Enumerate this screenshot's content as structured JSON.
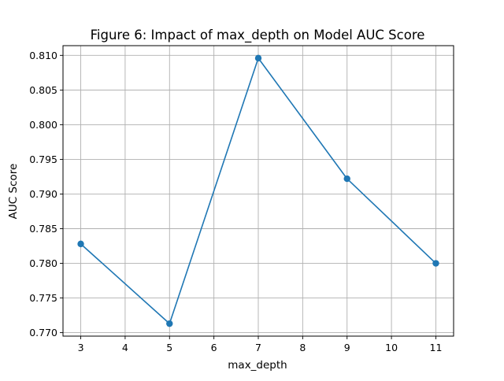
{
  "chart_data": {
    "type": "line",
    "title": "Figure 6: Impact of max_depth on Model AUC Score",
    "xlabel": "max_depth",
    "ylabel": "AUC Score",
    "x": [
      3,
      5,
      7,
      9,
      11
    ],
    "series": [
      {
        "values": [
          0.7828,
          0.7713,
          0.8096,
          0.7922,
          0.78
        ],
        "color": "#1f77b4",
        "marker": "circle"
      }
    ],
    "xlim": [
      2.6,
      11.4
    ],
    "ylim": [
      0.7695,
      0.8114
    ],
    "xticks": [
      3,
      4,
      5,
      6,
      7,
      8,
      9,
      10,
      11
    ],
    "xtick_labels": [
      "3",
      "4",
      "5",
      "6",
      "7",
      "8",
      "9",
      "10",
      "11"
    ],
    "yticks": [
      0.77,
      0.775,
      0.78,
      0.785,
      0.79,
      0.795,
      0.8,
      0.805,
      0.81
    ],
    "ytick_labels": [
      "0.770",
      "0.775",
      "0.780",
      "0.785",
      "0.790",
      "0.795",
      "0.800",
      "0.805",
      "0.810"
    ],
    "grid": true,
    "grid_color": "#b0b0b0",
    "legend": false
  }
}
